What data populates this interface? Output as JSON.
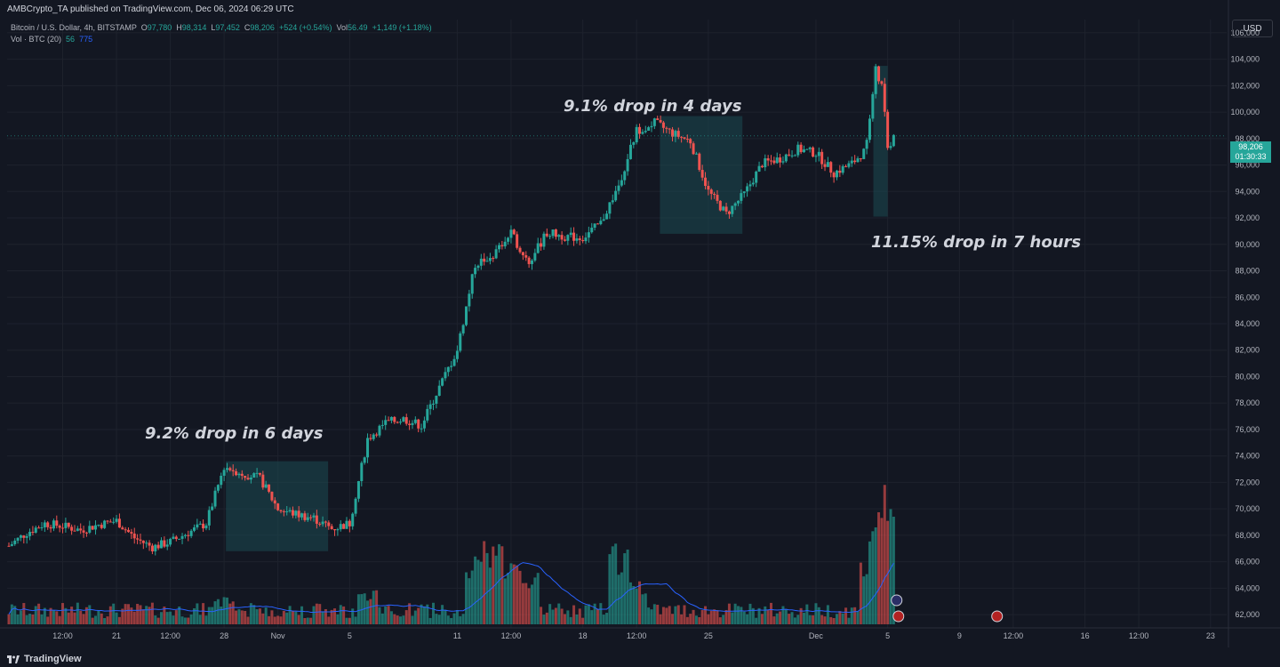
{
  "header": {
    "published": "AMBCrypto_TA published on TradingView.com, Dec 06, 2024 06:29 UTC"
  },
  "legend": {
    "symbol": "Bitcoin / U.S. Dollar, 4h, BITSTAMP",
    "o_label": "O",
    "o": "97,780",
    "h_label": "H",
    "h": "98,314",
    "l_label": "L",
    "l": "97,452",
    "c_label": "C",
    "c": "98,206",
    "change": "+524 (+0.54%)",
    "vol_label": "Vol",
    "vol": "56.49",
    "vol_change": "+1,149 (+1.18%)",
    "vol_indicator": "Vol · BTC (20)",
    "vol_val1": "56",
    "vol_val2": "775"
  },
  "price_axis": {
    "currency": "USD",
    "current_price": "98,206",
    "countdown": "01:30:33"
  },
  "annotations": {
    "a1": "9.2% drop in 6 days",
    "a2": "9.1% drop in 4 days",
    "a3": "11.15% drop in 7 hours"
  },
  "footer": {
    "brand": "TradingView"
  },
  "colors": {
    "background": "#131722",
    "up": "#26a69a",
    "down": "#ef5350",
    "vol_ma": "#2962ff",
    "highlight_box": "#1b4a52"
  },
  "chart_data": {
    "type": "candlestick",
    "symbol": "Bitcoin / U.S. Dollar",
    "interval": "4h",
    "ylim": [
      61000,
      107000
    ],
    "y_ticks": [
      "62,000",
      "64,000",
      "66,000",
      "68,000",
      "70,000",
      "72,000",
      "74,000",
      "76,000",
      "78,000",
      "80,000",
      "82,000",
      "84,000",
      "86,000",
      "88,000",
      "90,000",
      "92,000",
      "94,000",
      "96,000",
      "98,000",
      "100,000",
      "102,000",
      "104,000",
      "106,000"
    ],
    "x_ticks": [
      {
        "label": "12:00",
        "t": 3
      },
      {
        "label": "21",
        "t": 6
      },
      {
        "label": "12:00",
        "t": 9
      },
      {
        "label": "28",
        "t": 12
      },
      {
        "label": "Nov",
        "t": 15
      },
      {
        "label": "5",
        "t": 19
      },
      {
        "label": "11",
        "t": 25
      },
      {
        "label": "12:00",
        "t": 28
      },
      {
        "label": "18",
        "t": 32
      },
      {
        "label": "12:00",
        "t": 35
      },
      {
        "label": "25",
        "t": 39
      },
      {
        "label": "Dec",
        "t": 45
      },
      {
        "label": "5",
        "t": 49
      },
      {
        "label": "9",
        "t": 53
      },
      {
        "label": "12:00",
        "t": 56
      },
      {
        "label": "16",
        "t": 60
      },
      {
        "label": "12:00",
        "t": 63
      },
      {
        "label": "23",
        "t": 67
      }
    ],
    "price_path": [
      [
        0,
        67200
      ],
      [
        1,
        68200
      ],
      [
        2,
        68900
      ],
      [
        3,
        68700
      ],
      [
        4,
        68400
      ],
      [
        5,
        68800
      ],
      [
        6,
        69100
      ],
      [
        7,
        67800
      ],
      [
        8,
        67100
      ],
      [
        9,
        67500
      ],
      [
        10,
        68200
      ],
      [
        11,
        68900
      ],
      [
        12,
        73200
      ],
      [
        13,
        72700
      ],
      [
        14,
        72300
      ],
      [
        15,
        70000
      ],
      [
        16,
        69600
      ],
      [
        17,
        69300
      ],
      [
        18,
        68500
      ],
      [
        19,
        68900
      ],
      [
        20,
        75300
      ],
      [
        21,
        76500
      ],
      [
        22,
        76800
      ],
      [
        23,
        76300
      ],
      [
        24,
        79200
      ],
      [
        25,
        82000
      ],
      [
        26,
        88500
      ],
      [
        27,
        89200
      ],
      [
        28,
        90800
      ],
      [
        29,
        88600
      ],
      [
        30,
        90900
      ],
      [
        31,
        90600
      ],
      [
        32,
        90500
      ],
      [
        33,
        91600
      ],
      [
        34,
        94500
      ],
      [
        35,
        98600
      ],
      [
        36,
        99200
      ],
      [
        37,
        98400
      ],
      [
        38,
        97800
      ],
      [
        39,
        94000
      ],
      [
        40,
        92300
      ],
      [
        41,
        93800
      ],
      [
        42,
        96100
      ],
      [
        43,
        96500
      ],
      [
        44,
        97200
      ],
      [
        45,
        96900
      ],
      [
        46,
        95400
      ],
      [
        47,
        96100
      ],
      [
        47.8,
        97200
      ],
      [
        48.3,
        103300
      ],
      [
        48.7,
        101800
      ],
      [
        49.0,
        97300
      ],
      [
        49.4,
        98206
      ]
    ],
    "volume_spikes": [
      {
        "t": 12,
        "v": 0.18
      },
      {
        "t": 20,
        "v": 0.22
      },
      {
        "t": 26,
        "v": 0.45
      },
      {
        "t": 27,
        "v": 0.55
      },
      {
        "t": 28,
        "v": 0.42
      },
      {
        "t": 29,
        "v": 0.38
      },
      {
        "t": 34,
        "v": 0.52
      },
      {
        "t": 35,
        "v": 0.3
      },
      {
        "t": 48,
        "v": 0.42
      },
      {
        "t": 48.5,
        "v": 0.85
      },
      {
        "t": 49,
        "v": 0.9
      }
    ],
    "highlight_boxes": [
      {
        "x0": 12.1,
        "x1": 17.8,
        "y0": 66800,
        "y1": 73600
      },
      {
        "x0": 36.3,
        "x1": 40.9,
        "y0": 90800,
        "y1": 99700
      },
      {
        "x0": 48.2,
        "x1": 49.0,
        "y0": 92100,
        "y1": 103500
      }
    ]
  }
}
